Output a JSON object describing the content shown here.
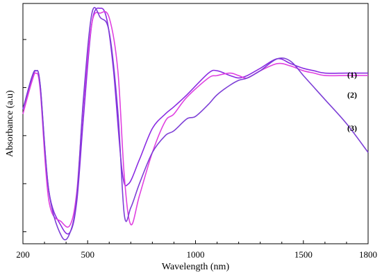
{
  "chart_data": {
    "type": "line",
    "title": "",
    "xlabel": "Wavelength (nm)",
    "ylabel": "Absorbance (a.u)",
    "xlim": [
      200,
      1800
    ],
    "ylim": [
      0,
      1
    ],
    "x_ticks": [
      200,
      500,
      1000,
      1500,
      1800
    ],
    "y_ticks": [
      0.05,
      0.25,
      0.45,
      0.65,
      0.85
    ],
    "grid": false,
    "legend": "inline-right",
    "series": [
      {
        "name": "(1)",
        "color": "#8a2be2",
        "points": [
          [
            200,
            0.56
          ],
          [
            240,
            0.68
          ],
          [
            260,
            0.72
          ],
          [
            280,
            0.66
          ],
          [
            320,
            0.22
          ],
          [
            380,
            0.07
          ],
          [
            420,
            0.05
          ],
          [
            450,
            0.18
          ],
          [
            480,
            0.52
          ],
          [
            520,
            0.92
          ],
          [
            560,
            0.98
          ],
          [
            590,
            0.93
          ],
          [
            620,
            0.72
          ],
          [
            660,
            0.3
          ],
          [
            690,
            0.25
          ],
          [
            740,
            0.35
          ],
          [
            800,
            0.48
          ],
          [
            860,
            0.54
          ],
          [
            900,
            0.57
          ],
          [
            960,
            0.62
          ],
          [
            1060,
            0.71
          ],
          [
            1100,
            0.72
          ],
          [
            1160,
            0.7
          ],
          [
            1200,
            0.69
          ],
          [
            1240,
            0.7
          ],
          [
            1300,
            0.73
          ],
          [
            1380,
            0.77
          ],
          [
            1440,
            0.75
          ],
          [
            1500,
            0.73
          ],
          [
            1550,
            0.72
          ],
          [
            1600,
            0.71
          ],
          [
            1700,
            0.71
          ],
          [
            1800,
            0.71
          ]
        ]
      },
      {
        "name": "(2)",
        "color": "#e040e0",
        "points": [
          [
            200,
            0.54
          ],
          [
            240,
            0.67
          ],
          [
            260,
            0.71
          ],
          [
            280,
            0.64
          ],
          [
            320,
            0.18
          ],
          [
            380,
            0.09
          ],
          [
            420,
            0.08
          ],
          [
            450,
            0.22
          ],
          [
            480,
            0.58
          ],
          [
            520,
            0.92
          ],
          [
            560,
            0.96
          ],
          [
            600,
            0.94
          ],
          [
            640,
            0.72
          ],
          [
            670,
            0.28
          ],
          [
            700,
            0.08
          ],
          [
            740,
            0.2
          ],
          [
            800,
            0.38
          ],
          [
            860,
            0.51
          ],
          [
            900,
            0.54
          ],
          [
            960,
            0.61
          ],
          [
            1060,
            0.69
          ],
          [
            1100,
            0.7
          ],
          [
            1160,
            0.71
          ],
          [
            1200,
            0.7
          ],
          [
            1240,
            0.69
          ],
          [
            1300,
            0.72
          ],
          [
            1380,
            0.75
          ],
          [
            1440,
            0.74
          ],
          [
            1500,
            0.72
          ],
          [
            1550,
            0.71
          ],
          [
            1600,
            0.7
          ],
          [
            1700,
            0.7
          ],
          [
            1800,
            0.7
          ]
        ]
      },
      {
        "name": "(3)",
        "color": "#7d3fd6",
        "points": [
          [
            200,
            0.56
          ],
          [
            240,
            0.69
          ],
          [
            260,
            0.72
          ],
          [
            280,
            0.66
          ],
          [
            320,
            0.22
          ],
          [
            380,
            0.03
          ],
          [
            420,
            0.05
          ],
          [
            450,
            0.2
          ],
          [
            480,
            0.6
          ],
          [
            520,
            0.96
          ],
          [
            560,
            0.94
          ],
          [
            600,
            0.88
          ],
          [
            640,
            0.55
          ],
          [
            670,
            0.12
          ],
          [
            700,
            0.15
          ],
          [
            740,
            0.25
          ],
          [
            800,
            0.38
          ],
          [
            860,
            0.45
          ],
          [
            900,
            0.47
          ],
          [
            960,
            0.52
          ],
          [
            1000,
            0.53
          ],
          [
            1060,
            0.58
          ],
          [
            1100,
            0.62
          ],
          [
            1160,
            0.66
          ],
          [
            1200,
            0.68
          ],
          [
            1240,
            0.69
          ],
          [
            1300,
            0.72
          ],
          [
            1380,
            0.77
          ],
          [
            1440,
            0.76
          ],
          [
            1500,
            0.7
          ],
          [
            1550,
            0.65
          ],
          [
            1600,
            0.6
          ],
          [
            1700,
            0.5
          ],
          [
            1800,
            0.38
          ]
        ]
      }
    ]
  }
}
